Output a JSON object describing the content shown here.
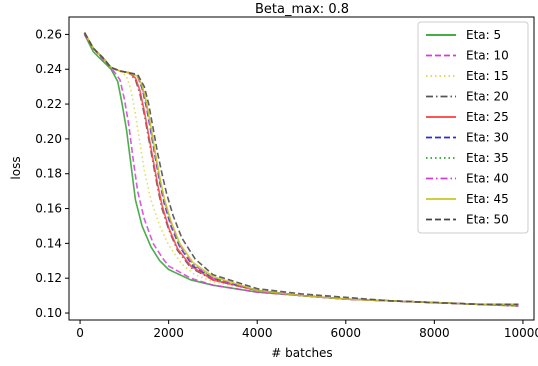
{
  "chart_data": {
    "type": "line",
    "title": "Beta_max: 0.8",
    "xlabel": "# batches",
    "ylabel": "loss",
    "xlim": [
      -250,
      10250
    ],
    "ylim": [
      0.096,
      0.27
    ],
    "xticks": [
      0,
      2000,
      4000,
      6000,
      8000,
      10000
    ],
    "yticks": [
      0.1,
      0.12,
      0.14,
      0.16,
      0.18,
      0.2,
      0.22,
      0.24,
      0.26
    ],
    "grid": false,
    "legend_position": "top-right",
    "series": [
      {
        "name": "Eta: 5",
        "color": "#2ca02c",
        "dash": "solid",
        "x": [
          100,
          300,
          500,
          700,
          850,
          950,
          1050,
          1150,
          1250,
          1400,
          1600,
          1800,
          2000,
          2500,
          3000,
          4000,
          5000,
          6000,
          7000,
          8000,
          9000,
          9900
        ],
        "y": [
          0.26,
          0.25,
          0.245,
          0.24,
          0.233,
          0.22,
          0.205,
          0.185,
          0.165,
          0.15,
          0.138,
          0.13,
          0.125,
          0.119,
          0.116,
          0.112,
          0.11,
          0.108,
          0.107,
          0.106,
          0.105,
          0.104
        ]
      },
      {
        "name": "Eta: 10",
        "color": "#d63bd6",
        "dash": "dashed",
        "x": [
          100,
          300,
          500,
          700,
          900,
          1000,
          1100,
          1200,
          1300,
          1450,
          1650,
          1850,
          2000,
          2500,
          3000,
          4000,
          5000,
          6000,
          7000,
          8000,
          9000,
          9900
        ],
        "y": [
          0.26,
          0.252,
          0.246,
          0.241,
          0.234,
          0.223,
          0.208,
          0.188,
          0.17,
          0.154,
          0.14,
          0.132,
          0.127,
          0.12,
          0.116,
          0.112,
          0.11,
          0.108,
          0.107,
          0.106,
          0.105,
          0.104
        ]
      },
      {
        "name": "Eta: 15",
        "color": "#d8d845",
        "dash": "dotted",
        "x": [
          100,
          300,
          500,
          700,
          900,
          1050,
          1150,
          1250,
          1350,
          1450,
          1600,
          1800,
          2000,
          2300,
          2600,
          3000,
          4000,
          5000,
          6000,
          7000,
          8000,
          9000,
          9900
        ],
        "y": [
          0.261,
          0.252,
          0.247,
          0.241,
          0.239,
          0.236,
          0.228,
          0.214,
          0.198,
          0.182,
          0.165,
          0.15,
          0.139,
          0.128,
          0.122,
          0.118,
          0.113,
          0.11,
          0.108,
          0.107,
          0.106,
          0.105,
          0.104
        ]
      },
      {
        "name": "Eta: 20",
        "color": "#555555",
        "dash": "dashdot",
        "x": [
          100,
          300,
          500,
          700,
          900,
          1100,
          1250,
          1350,
          1450,
          1550,
          1650,
          1750,
          1850,
          2000,
          2200,
          2500,
          3000,
          4000,
          5000,
          6000,
          7000,
          8000,
          9000,
          9900
        ],
        "y": [
          0.261,
          0.252,
          0.247,
          0.241,
          0.239,
          0.238,
          0.234,
          0.226,
          0.214,
          0.2,
          0.186,
          0.172,
          0.16,
          0.148,
          0.136,
          0.126,
          0.119,
          0.113,
          0.11,
          0.108,
          0.107,
          0.106,
          0.105,
          0.105
        ]
      },
      {
        "name": "Eta: 25",
        "color": "#ff3b3b",
        "dash": "solid",
        "x": [
          100,
          300,
          500,
          700,
          900,
          1100,
          1250,
          1350,
          1450,
          1550,
          1650,
          1750,
          1850,
          2000,
          2200,
          2500,
          3000,
          4000,
          5000,
          6000,
          7000,
          8000,
          9000,
          9900
        ],
        "y": [
          0.261,
          0.252,
          0.247,
          0.241,
          0.239,
          0.238,
          0.235,
          0.228,
          0.216,
          0.202,
          0.188,
          0.174,
          0.162,
          0.149,
          0.137,
          0.127,
          0.119,
          0.113,
          0.11,
          0.108,
          0.107,
          0.106,
          0.105,
          0.105
        ]
      },
      {
        "name": "Eta: 30",
        "color": "#2b2bdb",
        "dash": "dashed",
        "x": [
          100,
          300,
          500,
          700,
          900,
          1100,
          1300,
          1400,
          1500,
          1600,
          1700,
          1800,
          1900,
          2050,
          2250,
          2550,
          3000,
          4000,
          5000,
          6000,
          7000,
          8000,
          9000,
          9900
        ],
        "y": [
          0.261,
          0.252,
          0.247,
          0.241,
          0.239,
          0.238,
          0.236,
          0.229,
          0.218,
          0.204,
          0.189,
          0.175,
          0.163,
          0.15,
          0.138,
          0.127,
          0.12,
          0.113,
          0.11,
          0.108,
          0.107,
          0.106,
          0.105,
          0.105
        ]
      },
      {
        "name": "Eta: 35",
        "color": "#2ca02c",
        "dash": "dotted",
        "x": [
          100,
          300,
          500,
          700,
          900,
          1100,
          1300,
          1400,
          1500,
          1600,
          1700,
          1800,
          1900,
          2050,
          2250,
          2550,
          3000,
          4000,
          5000,
          6000,
          7000,
          8000,
          9000,
          9900
        ],
        "y": [
          0.261,
          0.252,
          0.247,
          0.241,
          0.239,
          0.238,
          0.236,
          0.23,
          0.219,
          0.205,
          0.19,
          0.176,
          0.164,
          0.151,
          0.139,
          0.128,
          0.12,
          0.113,
          0.11,
          0.108,
          0.107,
          0.106,
          0.105,
          0.105
        ]
      },
      {
        "name": "Eta: 40",
        "color": "#d63bd6",
        "dash": "dashdot",
        "x": [
          100,
          300,
          500,
          700,
          900,
          1100,
          1300,
          1400,
          1500,
          1600,
          1700,
          1800,
          1900,
          2050,
          2250,
          2550,
          3000,
          4000,
          5000,
          6000,
          7000,
          8000,
          9000,
          9900
        ],
        "y": [
          0.261,
          0.252,
          0.247,
          0.241,
          0.239,
          0.238,
          0.236,
          0.23,
          0.22,
          0.206,
          0.191,
          0.177,
          0.165,
          0.152,
          0.139,
          0.128,
          0.12,
          0.113,
          0.11,
          0.108,
          0.107,
          0.106,
          0.105,
          0.105
        ]
      },
      {
        "name": "Eta: 45",
        "color": "#c8c820",
        "dash": "solid",
        "x": [
          100,
          300,
          500,
          700,
          900,
          1100,
          1300,
          1400,
          1500,
          1600,
          1700,
          1800,
          1900,
          2050,
          2250,
          2550,
          3000,
          4000,
          5000,
          6000,
          7000,
          8000,
          9000,
          9900
        ],
        "y": [
          0.261,
          0.252,
          0.247,
          0.241,
          0.239,
          0.238,
          0.236,
          0.231,
          0.221,
          0.207,
          0.192,
          0.178,
          0.166,
          0.153,
          0.14,
          0.129,
          0.121,
          0.113,
          0.11,
          0.108,
          0.107,
          0.106,
          0.105,
          0.105
        ]
      },
      {
        "name": "Eta: 50",
        "color": "#444444",
        "dash": "dashed",
        "x": [
          100,
          300,
          500,
          700,
          900,
          1100,
          1300,
          1450,
          1550,
          1650,
          1750,
          1850,
          1950,
          2100,
          2300,
          2600,
          3000,
          4000,
          5000,
          6000,
          7000,
          8000,
          9000,
          9900
        ],
        "y": [
          0.261,
          0.252,
          0.247,
          0.241,
          0.239,
          0.238,
          0.237,
          0.23,
          0.22,
          0.206,
          0.192,
          0.18,
          0.169,
          0.156,
          0.143,
          0.131,
          0.122,
          0.114,
          0.111,
          0.109,
          0.107,
          0.106,
          0.105,
          0.105
        ]
      }
    ]
  }
}
